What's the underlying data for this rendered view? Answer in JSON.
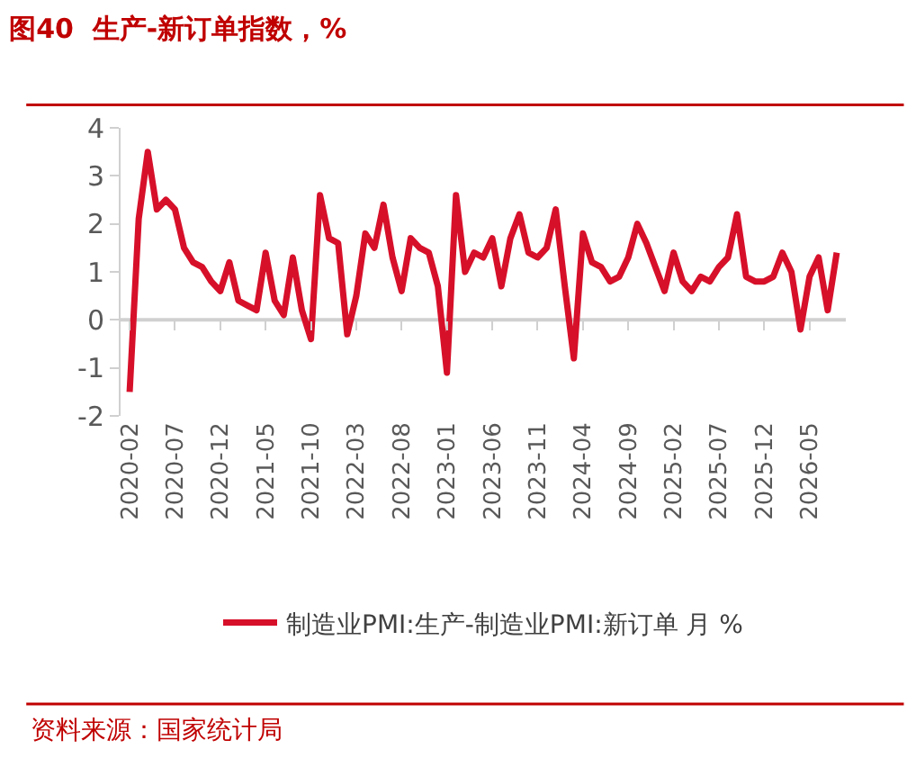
{
  "chart_data": {
    "type": "line",
    "title": "图40  生产-新订单指数，%",
    "categories": [
      "2020-02",
      null,
      null,
      null,
      null,
      "2020-07",
      null,
      null,
      null,
      null,
      "2020-12",
      null,
      null,
      null,
      null,
      "2021-05",
      null,
      null,
      null,
      null,
      "2021-10",
      null,
      null,
      null,
      null,
      "2022-03",
      null,
      null,
      null,
      null,
      "2022-08",
      null,
      null,
      null,
      null,
      "2023-01",
      null,
      null,
      null,
      null,
      "2023-06",
      null,
      null,
      null,
      null,
      "2023-11",
      null,
      null,
      null,
      null,
      "2024-04",
      null,
      null,
      null,
      null,
      "2024-09",
      null,
      null,
      null,
      null,
      "2025-02",
      null,
      null,
      null,
      null,
      "2025-07",
      null,
      null,
      null,
      null,
      "2025-12",
      null,
      null,
      null,
      null,
      "2026-05",
      null,
      null,
      null
    ],
    "series": [
      {
        "name": "制造业PMI:生产-制造业PMI:新订单 月 %",
        "color": "#d7102a",
        "values": [
          -1.5,
          2.1,
          3.5,
          2.3,
          2.5,
          2.3,
          1.5,
          1.2,
          1.1,
          0.8,
          0.6,
          1.2,
          0.4,
          0.3,
          0.2,
          1.4,
          0.4,
          0.1,
          1.3,
          0.2,
          -0.4,
          2.6,
          1.7,
          1.6,
          -0.3,
          0.5,
          1.8,
          1.5,
          2.4,
          1.3,
          0.6,
          1.7,
          1.5,
          1.4,
          0.7,
          -1.1,
          2.6,
          1.0,
          1.4,
          1.3,
          1.7,
          0.7,
          1.7,
          2.2,
          1.4,
          1.3,
          1.5,
          2.3,
          0.7,
          -0.8,
          1.8,
          1.2,
          1.1,
          0.8,
          0.9,
          1.3,
          2.0,
          1.6,
          1.1,
          0.6,
          1.4,
          0.8,
          0.6,
          0.9,
          0.8,
          1.1,
          1.3,
          2.2,
          0.9,
          0.8,
          0.8,
          0.9,
          1.4,
          1.0,
          -0.2,
          0.9,
          1.3,
          0.2,
          1.4
        ]
      }
    ],
    "ylim": [
      -2,
      4
    ],
    "yticks": [
      -2,
      -1,
      0,
      1,
      2,
      3,
      4
    ],
    "grid": false,
    "ref_lines": [
      {
        "axis": "y",
        "value": 0,
        "color": "#d0d0d0"
      }
    ],
    "legend": "bottom",
    "marker": "none",
    "line_style": "solid",
    "annotations": [
      "资料来源：国家统计局"
    ]
  }
}
